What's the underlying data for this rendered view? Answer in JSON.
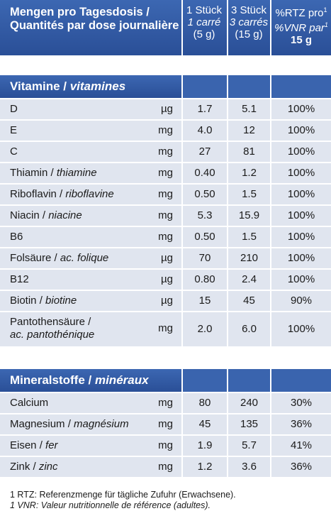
{
  "header": {
    "title_de": "Mengen pro Tagesdosis /",
    "title_fr": "Quantités par dose journalière",
    "col1": {
      "de": "1 Stück",
      "fr": "1 carré",
      "weight": "(5 g)"
    },
    "col2": {
      "de": "3 Stück",
      "fr": "3 carrés",
      "weight": "(15 g)"
    },
    "col3": {
      "de": "%RTZ pro",
      "fr": "%VNR par",
      "sup": "1",
      "weight": "15 g"
    }
  },
  "vitamins": {
    "title_de": "Vitamine / ",
    "title_fr": "vitamines",
    "rows": [
      {
        "de": "D",
        "fr": "",
        "unit": "µg",
        "v1": "1.7",
        "v2": "5.1",
        "pct": "100%"
      },
      {
        "de": "E",
        "fr": "",
        "unit": "mg",
        "v1": "4.0",
        "v2": "12",
        "pct": "100%"
      },
      {
        "de": "C",
        "fr": "",
        "unit": "mg",
        "v1": "27",
        "v2": "81",
        "pct": "100%"
      },
      {
        "de": "Thiamin / ",
        "fr": "thiamine",
        "unit": "mg",
        "v1": "0.40",
        "v2": "1.2",
        "pct": "100%"
      },
      {
        "de": "Riboflavin / ",
        "fr": "riboflavine",
        "unit": "mg",
        "v1": "0.50",
        "v2": "1.5",
        "pct": "100%"
      },
      {
        "de": "Niacin / ",
        "fr": "niacine",
        "unit": "mg",
        "v1": "5.3",
        "v2": "15.9",
        "pct": "100%"
      },
      {
        "de": "B6",
        "fr": "",
        "unit": "mg",
        "v1": "0.50",
        "v2": "1.5",
        "pct": "100%"
      },
      {
        "de": "Folsäure / ",
        "fr": "ac. folique",
        "unit": "µg",
        "v1": "70",
        "v2": "210",
        "pct": "100%"
      },
      {
        "de": "B12",
        "fr": "",
        "unit": "µg",
        "v1": "0.80",
        "v2": "2.4",
        "pct": "100%"
      },
      {
        "de": "Biotin / ",
        "fr": "biotine",
        "unit": "µg",
        "v1": "15",
        "v2": "45",
        "pct": "90%"
      },
      {
        "de": "Pantothensäure /",
        "fr": "ac. pantothénique",
        "unit": "mg",
        "v1": "2.0",
        "v2": "6.0",
        "pct": "100%"
      }
    ]
  },
  "minerals": {
    "title_de": "Mineralstoffe / ",
    "title_fr": "minéraux",
    "rows": [
      {
        "de": "Calcium",
        "fr": "",
        "unit": "mg",
        "v1": "80",
        "v2": "240",
        "pct": "30%"
      },
      {
        "de": "Magnesium / ",
        "fr": "magnésium",
        "unit": "mg",
        "v1": "45",
        "v2": "135",
        "pct": "36%"
      },
      {
        "de": "Eisen / ",
        "fr": "fer",
        "unit": "mg",
        "v1": "1.9",
        "v2": "5.7",
        "pct": "41%"
      },
      {
        "de": "Zink / ",
        "fr": "zinc",
        "unit": "mg",
        "v1": "1.2",
        "v2": "3.6",
        "pct": "36%"
      }
    ]
  },
  "footnotes": {
    "de": "1 RTZ: Referenzmenge für tägliche Zufuhr (Erwachsene).",
    "fr": "1 VNR: Valeur nutritionnelle de référence (adultes)."
  },
  "colors": {
    "header_blue": "#2f57a2",
    "row_bg": "#e0e5ef"
  }
}
